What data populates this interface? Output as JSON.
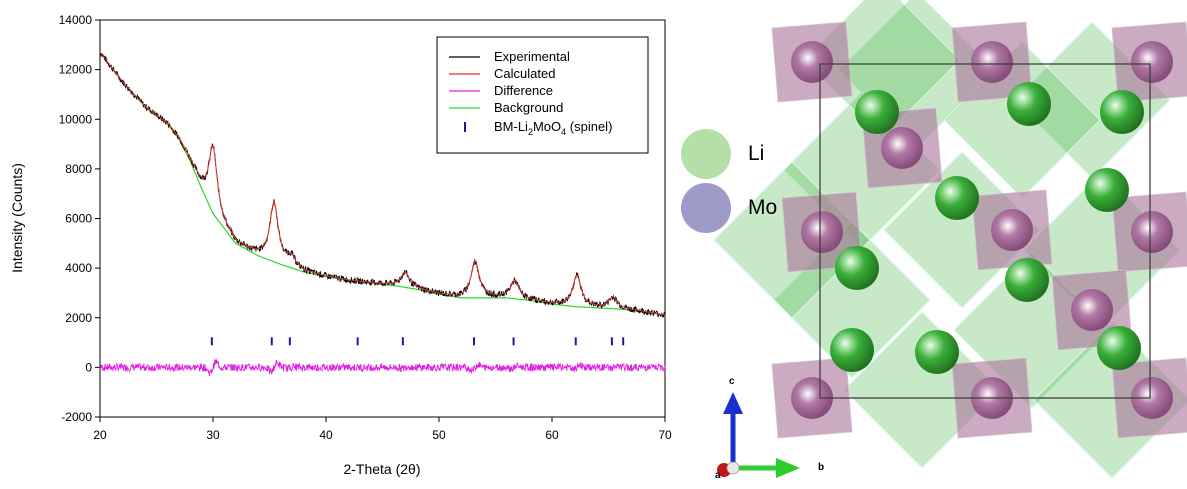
{
  "chart_data": {
    "type": "line",
    "xlabel": "2-Theta (2θ)",
    "ylabel": "Intensity (Counts)",
    "xlim": [
      20,
      70
    ],
    "ylim": [
      -2000,
      14000
    ],
    "x_ticks": [
      "20",
      "30",
      "40",
      "50",
      "60",
      "70"
    ],
    "y_ticks": [
      "-2000",
      "0",
      "2000",
      "4000",
      "6000",
      "8000",
      "10000",
      "12000",
      "14000"
    ],
    "grid": false,
    "legend_position": "top-right",
    "legend": {
      "experimental": "Experimental",
      "calculated": "Calculated",
      "difference": "Difference",
      "background": "Background",
      "phase_prefix": "BM-Li",
      "phase_sub1": "2",
      "phase_mid": "MoO",
      "phase_sub2": "4",
      "phase_suffix": " (spinel)"
    },
    "colors": {
      "experimental": "#000000",
      "calculated": "#e03030",
      "difference": "#e020e0",
      "background": "#2ed62e",
      "bragg": "#1a1aa0"
    },
    "series": [
      {
        "name": "Background",
        "x": [
          20,
          22,
          24,
          26,
          27,
          28,
          29,
          30,
          32,
          34,
          36,
          38,
          40,
          42,
          44,
          46,
          48,
          50,
          52,
          54,
          56,
          58,
          60,
          62,
          64,
          66,
          68,
          70
        ],
        "y": [
          12700,
          11500,
          10500,
          9800,
          9200,
          8300,
          7200,
          6200,
          5000,
          4500,
          4150,
          3850,
          3650,
          3500,
          3400,
          3300,
          3150,
          2950,
          2800,
          2800,
          2800,
          2700,
          2550,
          2450,
          2400,
          2350,
          2250,
          2100
        ]
      }
    ],
    "peaks": [
      {
        "x": 30.0,
        "height": 2700
      },
      {
        "x": 35.4,
        "height": 2350
      },
      {
        "x": 36.9,
        "height": 400
      },
      {
        "x": 47.0,
        "height": 600
      },
      {
        "x": 53.2,
        "height": 1450
      },
      {
        "x": 56.7,
        "height": 700
      },
      {
        "x": 62.2,
        "height": 1250
      },
      {
        "x": 65.4,
        "height": 450
      }
    ],
    "bragg_positions": [
      29.9,
      35.2,
      36.8,
      42.8,
      46.8,
      53.1,
      56.6,
      62.1,
      65.3,
      66.3
    ],
    "bragg_y": 1050
  },
  "structure": {
    "species": [
      {
        "label": "Li",
        "color": "#b5dfa9"
      },
      {
        "label": "Mo",
        "color": "#9f9bc9"
      }
    ],
    "axes": {
      "c": "c",
      "b": "b",
      "a": "a"
    },
    "colors": {
      "octahedra": "#5fbf5f",
      "tetrahedra": "#a8739a",
      "li_atom": "#3aaf3a",
      "mo_atom": "#7a3f6e"
    }
  }
}
